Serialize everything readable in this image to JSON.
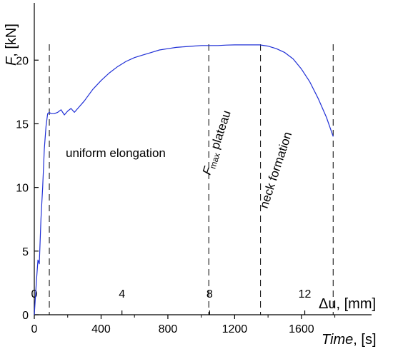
{
  "chart_data": {
    "type": "line",
    "y_axis": {
      "label_symbol": "F",
      "label_unit": ", [kN]",
      "ticks": [
        0,
        5,
        10,
        15,
        20
      ],
      "range": [
        0,
        24.5
      ]
    },
    "x_axis_time": {
      "label": "Time",
      "label_unit": ", [s]",
      "ticks": [
        0,
        400,
        800,
        1200,
        1600
      ],
      "range": [
        0,
        2020
      ]
    },
    "x_axis_displacement": {
      "label": "Δu, [mm]",
      "ticks": [
        0,
        4,
        8,
        12
      ],
      "tick_time_positions": [
        0,
        525,
        1050,
        1620
      ]
    },
    "series": [
      {
        "color": "#1f2fd6",
        "x": [
          0,
          12,
          22,
          30,
          40,
          50,
          60,
          70,
          80,
          90,
          100,
          120,
          140,
          160,
          180,
          200,
          220,
          240,
          260,
          300,
          350,
          400,
          450,
          500,
          550,
          600,
          650,
          700,
          750,
          800,
          850,
          900,
          950,
          1000,
          1050,
          1100,
          1150,
          1200,
          1250,
          1300,
          1350,
          1400,
          1450,
          1500,
          1550,
          1600,
          1650,
          1700,
          1750,
          1790
        ],
        "y": [
          0,
          2.5,
          4.3,
          4.0,
          7.5,
          10.0,
          13.0,
          14.8,
          15.8,
          15.9,
          15.8,
          15.8,
          15.9,
          16.1,
          15.7,
          16.0,
          16.2,
          15.9,
          16.2,
          16.8,
          17.7,
          18.4,
          19.0,
          19.5,
          19.9,
          20.2,
          20.4,
          20.6,
          20.8,
          20.9,
          21.0,
          21.05,
          21.1,
          21.15,
          21.15,
          21.15,
          21.18,
          21.2,
          21.2,
          21.2,
          21.2,
          21.1,
          20.9,
          20.6,
          20.1,
          19.3,
          18.3,
          17.0,
          15.5,
          14.0
        ]
      }
    ],
    "vlines_time": [
      90,
      1045,
      1355,
      1790
    ],
    "annotations": {
      "region1": "uniform elongation",
      "region2_base": "F",
      "region2_sub": "max",
      "region2_rest": " plateau",
      "region3": "neck formation"
    }
  }
}
